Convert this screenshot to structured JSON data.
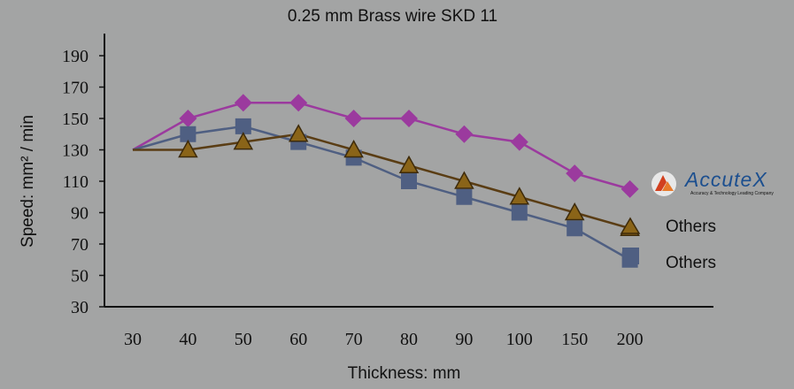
{
  "chart_data": {
    "type": "line",
    "title": "0.25 mm Brass wire SKD 11",
    "xlabel": "Thickness: mm",
    "ylabel": "Speed: mm² / min",
    "categories": [
      "30",
      "40",
      "50",
      "60",
      "70",
      "80",
      "90",
      "100",
      "150",
      "200"
    ],
    "y_ticks": [
      30,
      50,
      70,
      90,
      110,
      130,
      150,
      170,
      190
    ],
    "ylim": [
      30,
      190
    ],
    "grid": false,
    "series": [
      {
        "name": "AccuteX",
        "marker": "diamond",
        "color": "#9b3a9e",
        "values": [
          130,
          150,
          160,
          160,
          150,
          150,
          140,
          135,
          115,
          105
        ]
      },
      {
        "name": "Others",
        "marker": "triangle",
        "color": "#5a3d14",
        "marker_color": "#8a6418",
        "values": [
          130,
          130,
          135,
          140,
          130,
          120,
          110,
          100,
          90,
          80
        ]
      },
      {
        "name": "Others",
        "marker": "square",
        "color": "#4f5f82",
        "values": [
          130,
          140,
          145,
          135,
          125,
          110,
          100,
          90,
          80,
          60
        ]
      }
    ]
  },
  "logo": {
    "word": "AccuteX",
    "tagline": "Accuracy & Technology Leading Company"
  }
}
